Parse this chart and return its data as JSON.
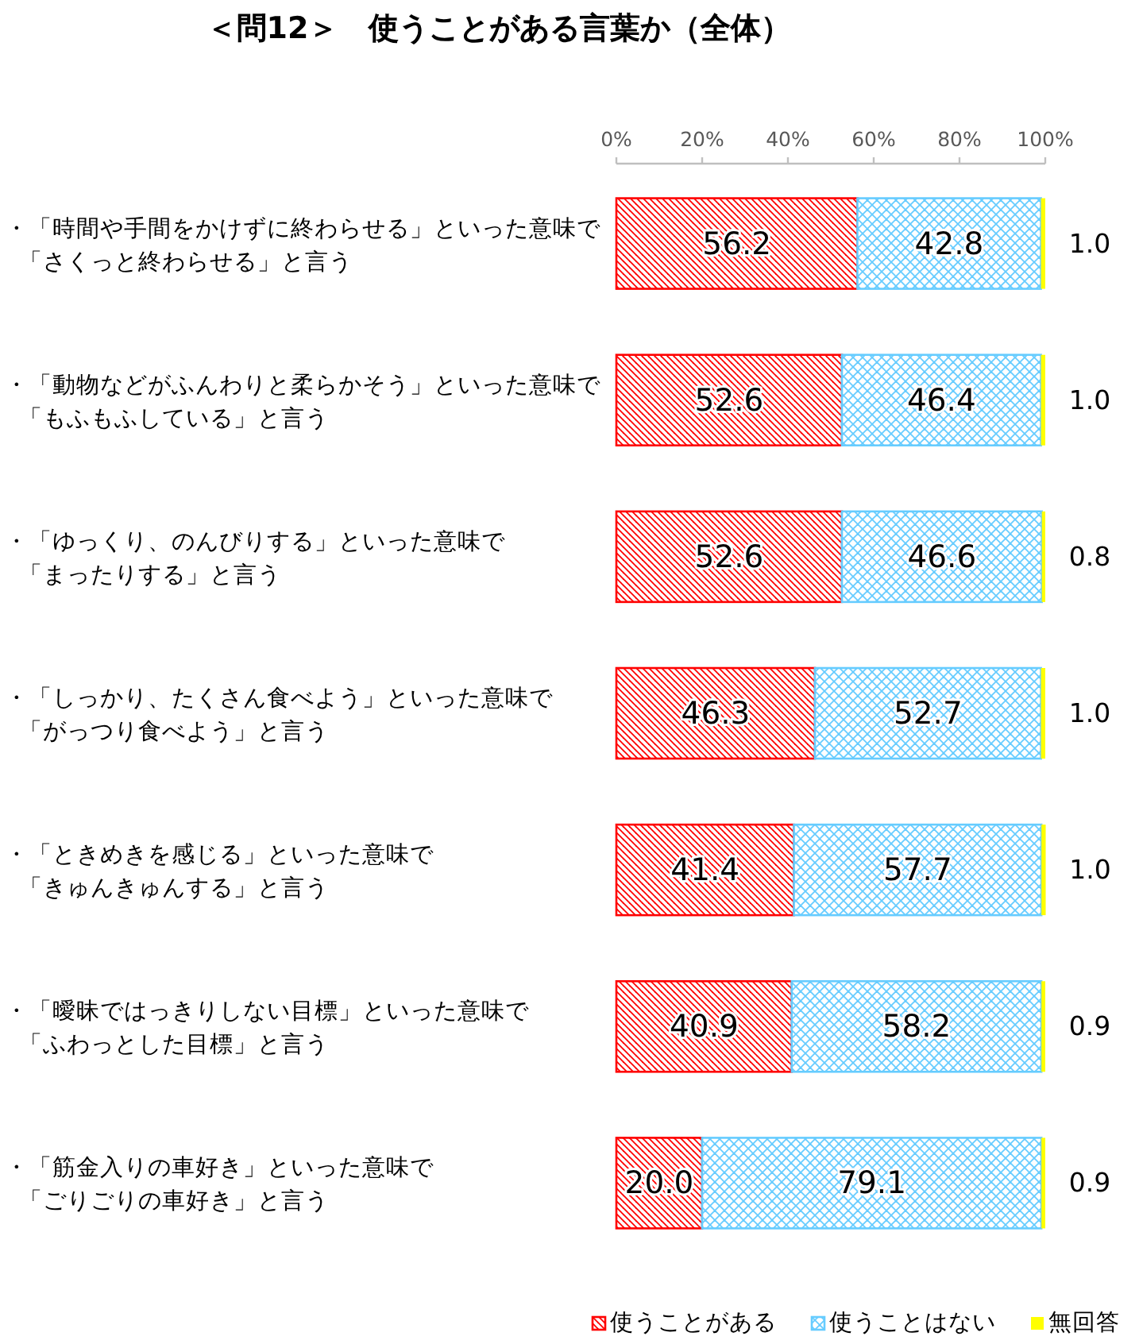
{
  "chart_data": {
    "type": "bar",
    "orientation": "horizontal",
    "stacked": true,
    "title": "＜問12＞　使うことがある言葉か（全体）",
    "categories": [
      "・「時間や手間をかけずに終わらせる」といった意味で「さくっと終わらせる」と言う",
      "・「動物などがふんわりと柔らかそう」といった意味で「もふもふしている」と言う",
      "・「ゆっくり、のんびりする」といった意味で「まったりする」と言う",
      "・「しっかり、たくさん食べよう」といった意味で「がっつり食べよう」と言う",
      "・「ときめきを感じる」といった意味で「きゅんきゅんする」と言う",
      "・「曖昧ではっきりしない目標」といった意味で「ふわっとした目標」と言う",
      "・「筋金入りの車好き」といった意味で「ごりごりの車好き」と言う"
    ],
    "xlim": [
      0,
      100
    ],
    "xticks": [
      {
        "value": 0,
        "label": "0%"
      },
      {
        "value": 20,
        "label": "20%"
      },
      {
        "value": 40,
        "label": "40%"
      },
      {
        "value": 60,
        "label": "60%"
      },
      {
        "value": 80,
        "label": "80%"
      },
      {
        "value": 100,
        "label": "100%"
      }
    ],
    "series": [
      {
        "name": "使うことがある",
        "color": "#ff0000",
        "values": [
          56.2,
          52.6,
          52.6,
          46.3,
          41.4,
          40.9,
          20.0
        ],
        "value_labels": [
          "56.2",
          "52.6",
          "52.6",
          "46.3",
          "41.4",
          "40.9",
          "20.0"
        ]
      },
      {
        "name": "使うことはない",
        "color": "#66ccff",
        "values": [
          42.8,
          46.4,
          46.6,
          52.7,
          57.7,
          58.2,
          79.1
        ],
        "value_labels": [
          "42.8",
          "46.4",
          "46.6",
          "52.7",
          "57.7",
          "58.2",
          "79.1"
        ]
      },
      {
        "name": "無回答",
        "color": "#ffff00",
        "values": [
          1.0,
          1.0,
          0.8,
          1.0,
          1.0,
          0.9,
          0.9
        ],
        "value_labels": [
          "1.0",
          "1.0",
          "0.8",
          "1.0",
          "1.0",
          "0.9",
          "0.9"
        ]
      }
    ],
    "legend": "bottom right"
  }
}
